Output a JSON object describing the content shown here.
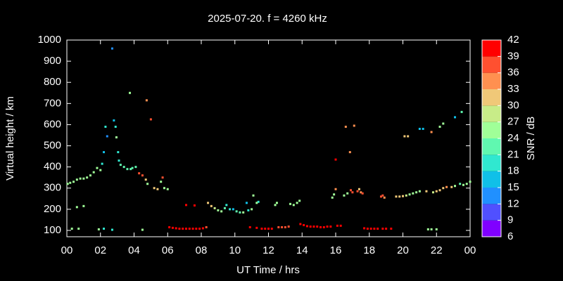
{
  "chart_data": {
    "type": "scatter",
    "title": "2025-07-20. f = 4260 kHz",
    "x_label": "UT Time / hrs",
    "y_label": "Virtual height / km",
    "xlim": [
      0,
      24
    ],
    "xticks": [
      {
        "value": 0,
        "label": "00"
      },
      {
        "value": 2,
        "label": "02"
      },
      {
        "value": 4,
        "label": "04"
      },
      {
        "value": 6,
        "label": "06"
      },
      {
        "value": 8,
        "label": "08"
      },
      10,
      12,
      14,
      16,
      18,
      20,
      22,
      {
        "value": 24,
        "label": "00"
      }
    ],
    "ylim": [
      70,
      1000
    ],
    "yticks": [
      100,
      200,
      300,
      400,
      500,
      600,
      700,
      800,
      900,
      1000
    ],
    "colorbar": {
      "label": "SNR / dB",
      "lim": [
        6,
        42
      ],
      "ticks": [
        6,
        9,
        12,
        15,
        18,
        21,
        24,
        27,
        30,
        33,
        36,
        39,
        42
      ],
      "colors": [
        "#8000ff",
        "#5050ff",
        "#2090ff",
        "#10c0e8",
        "#30e8d0",
        "#60f8b0",
        "#a0ff98",
        "#c8ec88",
        "#f0c878",
        "#ff9050",
        "#ff5030",
        "#ff0000"
      ]
    },
    "x": [
      0.05,
      0.2,
      0.4,
      0.6,
      0.8,
      1.0,
      1.2,
      1.4,
      1.6,
      1.8,
      2.0,
      2.1,
      2.2,
      2.3,
      2.4,
      2.7,
      2.8,
      2.9,
      2.95,
      3.05,
      3.1,
      3.2,
      3.4,
      3.6,
      3.8,
      3.9,
      4.1,
      3.75,
      4.3,
      4.5,
      4.7,
      4.8,
      4.75,
      5.0,
      5.2,
      5.4,
      5.6,
      5.7,
      5.8,
      6.0,
      0.3,
      0.7,
      1.9,
      2.2,
      2.7,
      4.5,
      0.6,
      1.0,
      6.1,
      6.3,
      6.5,
      6.7,
      6.9,
      7.1,
      7.3,
      7.5,
      7.7,
      7.9,
      8.1,
      8.3,
      7.1,
      7.6,
      8.4,
      8.6,
      8.8,
      9.0,
      9.2,
      9.4,
      9.5,
      9.7,
      9.9,
      10.1,
      10.3,
      10.5,
      10.8,
      10.7,
      11.0,
      11.1,
      11.4,
      11.3,
      10.9,
      11.3,
      11.6,
      11.8,
      12.0,
      12.2,
      12.6,
      12.8,
      13.0,
      13.2,
      12.4,
      12.5,
      13.3,
      13.5,
      13.7,
      13.85,
      13.9,
      14.1,
      14.3,
      14.5,
      14.7,
      14.9,
      15.1,
      15.3,
      15.5,
      15.7,
      16.1,
      16.3,
      15.8,
      15.9,
      16.0,
      16.0,
      16.5,
      16.7,
      16.6,
      16.85,
      16.9,
      17.0,
      17.1,
      17.3,
      17.5,
      17.4,
      17.6,
      17.7,
      17.9,
      18.1,
      18.3,
      18.5,
      18.8,
      19.0,
      19.3,
      18.7,
      18.8,
      18.9,
      19.6,
      19.8,
      20.0,
      20.2,
      20.4,
      20.6,
      20.8,
      21.0,
      21.4,
      21.8,
      22.0,
      22.2,
      22.4,
      22.6,
      22.9,
      23.1,
      23.4,
      23.6,
      23.8,
      24.0,
      20.1,
      20.3,
      21.0,
      21.2,
      21.7,
      22.2,
      22.4,
      23.1,
      23.5,
      21.5,
      21.7,
      22.0
    ],
    "values": [
      320,
      325,
      330,
      340,
      345,
      345,
      350,
      360,
      375,
      395,
      385,
      415,
      470,
      590,
      545,
      960,
      620,
      590,
      540,
      470,
      430,
      410,
      400,
      390,
      390,
      395,
      400,
      750,
      370,
      360,
      340,
      320,
      715,
      625,
      300,
      295,
      330,
      350,
      300,
      295,
      108,
      108,
      105,
      108,
      103,
      103,
      210,
      215,
      115,
      112,
      110,
      108,
      108,
      108,
      108,
      108,
      108,
      108,
      110,
      115,
      220,
      218,
      230,
      215,
      205,
      195,
      190,
      205,
      220,
      200,
      200,
      190,
      185,
      185,
      195,
      230,
      200,
      265,
      235,
      230,
      115,
      112,
      108,
      108,
      108,
      108,
      115,
      115,
      115,
      118,
      220,
      230,
      225,
      220,
      230,
      240,
      130,
      125,
      120,
      118,
      118,
      118,
      115,
      115,
      118,
      118,
      122,
      122,
      255,
      270,
      295,
      435,
      265,
      275,
      590,
      470,
      290,
      280,
      595,
      285,
      280,
      295,
      275,
      110,
      108,
      108,
      108,
      108,
      108,
      108,
      108,
      260,
      265,
      255,
      260,
      260,
      262,
      265,
      270,
      275,
      280,
      285,
      285,
      280,
      285,
      290,
      300,
      305,
      305,
      310,
      320,
      315,
      320,
      330,
      545,
      545,
      580,
      580,
      565,
      590,
      605,
      635,
      660,
      105,
      105,
      105
    ],
    "snr": [
      24,
      24,
      24,
      24,
      24,
      24,
      24,
      24,
      24,
      24,
      25,
      18,
      15,
      18,
      13,
      13,
      15,
      20,
      24,
      18,
      18,
      21,
      21,
      21,
      21,
      22,
      22,
      24,
      38,
      36,
      30,
      24,
      33,
      38,
      30,
      30,
      24,
      38,
      24,
      24,
      24,
      24,
      24,
      18,
      18,
      24,
      24,
      24,
      42,
      42,
      42,
      42,
      42,
      42,
      42,
      42,
      42,
      42,
      40,
      38,
      40,
      40,
      30,
      30,
      27,
      24,
      24,
      21,
      20,
      18,
      16,
      21,
      21,
      24,
      18,
      15,
      24,
      24,
      18,
      24,
      40,
      40,
      42,
      42,
      42,
      42,
      38,
      36,
      36,
      38,
      24,
      24,
      24,
      24,
      24,
      24,
      40,
      40,
      40,
      40,
      40,
      40,
      40,
      40,
      40,
      40,
      40,
      40,
      24,
      24,
      33,
      42,
      24,
      24,
      33,
      33,
      36,
      38,
      33,
      36,
      33,
      30,
      36,
      40,
      42,
      42,
      42,
      42,
      42,
      40,
      40,
      36,
      36,
      33,
      30,
      30,
      30,
      27,
      24,
      24,
      24,
      24,
      30,
      27,
      30,
      30,
      30,
      33,
      30,
      24,
      21,
      24,
      24,
      24,
      30,
      30,
      15,
      15,
      33,
      24,
      24,
      15,
      21,
      24,
      24,
      24
    ]
  }
}
